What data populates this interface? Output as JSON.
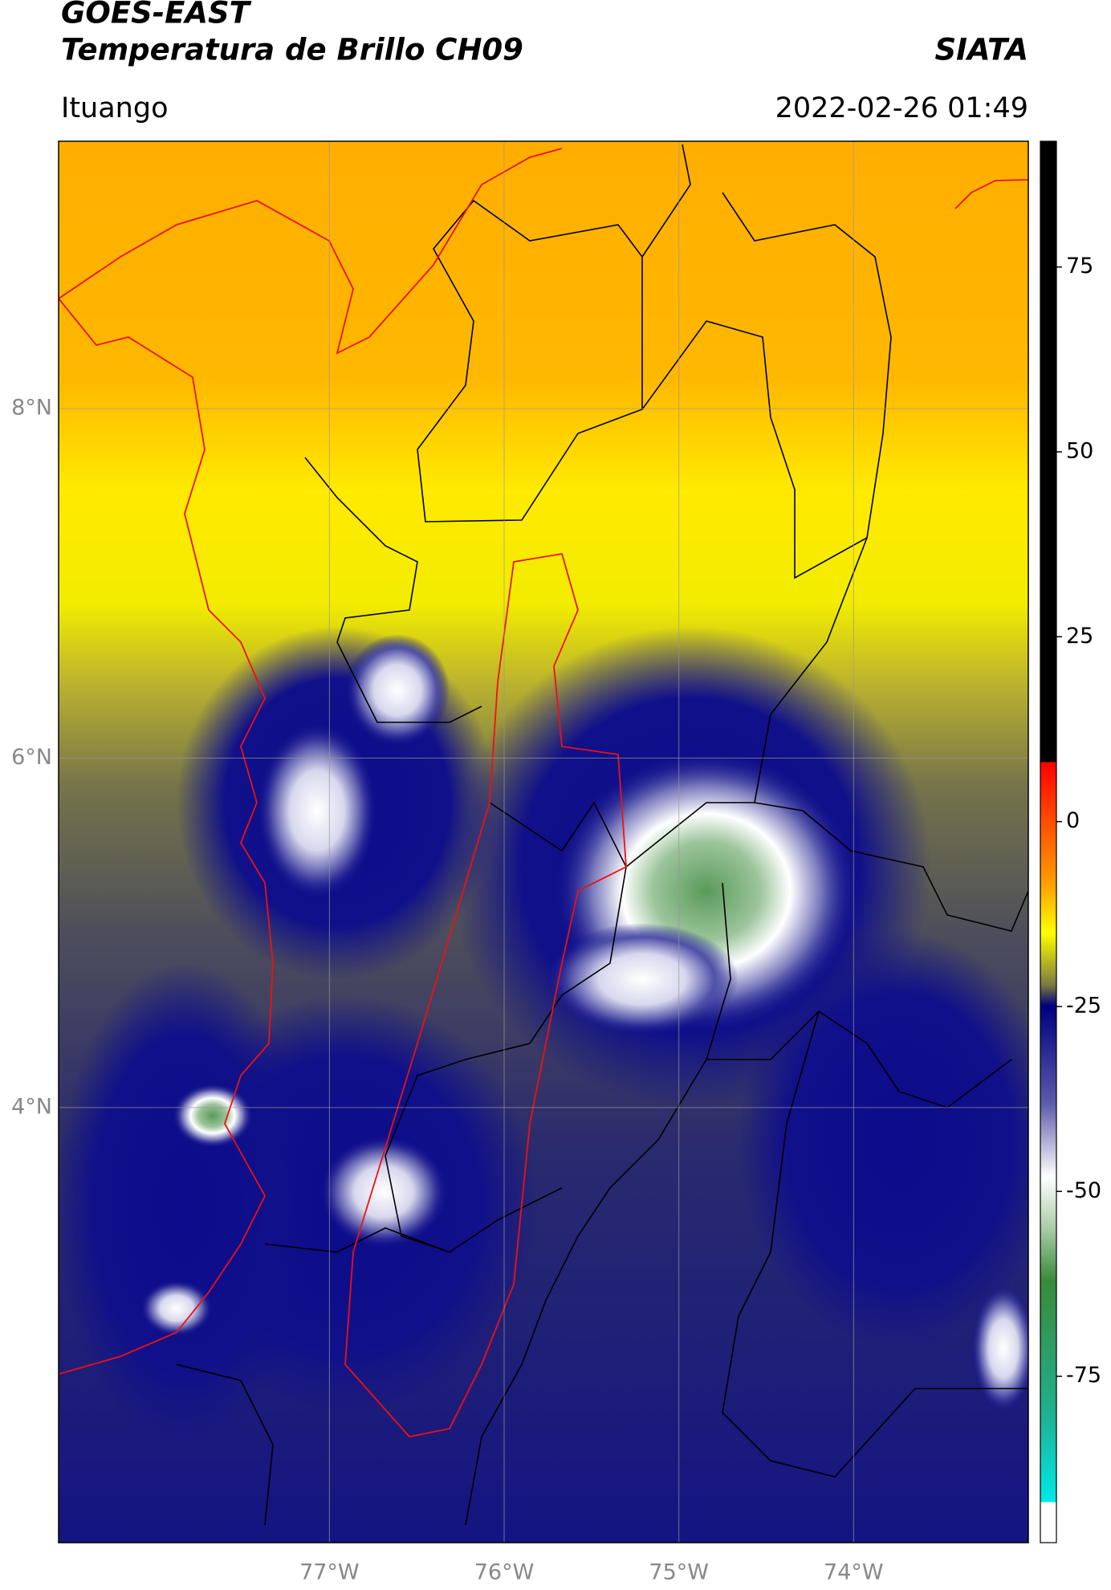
{
  "header": {
    "title": "GOES-EAST",
    "subtitle": "Temperatura de Brillo CH09",
    "organization": "SIATA",
    "location": "Ituango",
    "datetime": "2022-02-26 01:49"
  },
  "map": {
    "xlim": [
      -78.55,
      -73.0
    ],
    "ylim": [
      1.51,
      9.53
    ],
    "xticks": [
      {
        "value": -77,
        "label": "77°W"
      },
      {
        "value": -76,
        "label": "76°W"
      },
      {
        "value": -75,
        "label": "75°W"
      },
      {
        "value": -74,
        "label": "74°W"
      }
    ],
    "yticks": [
      {
        "value": 8,
        "label": "8°N"
      },
      {
        "value": 6,
        "label": "6°N"
      },
      {
        "value": 4,
        "label": "4°N"
      }
    ],
    "grid": true
  },
  "colorbar": {
    "lim": [
      -97.5,
      92
    ],
    "ticks": [
      75,
      50,
      25,
      0,
      -25,
      -50,
      -75
    ]
  }
}
